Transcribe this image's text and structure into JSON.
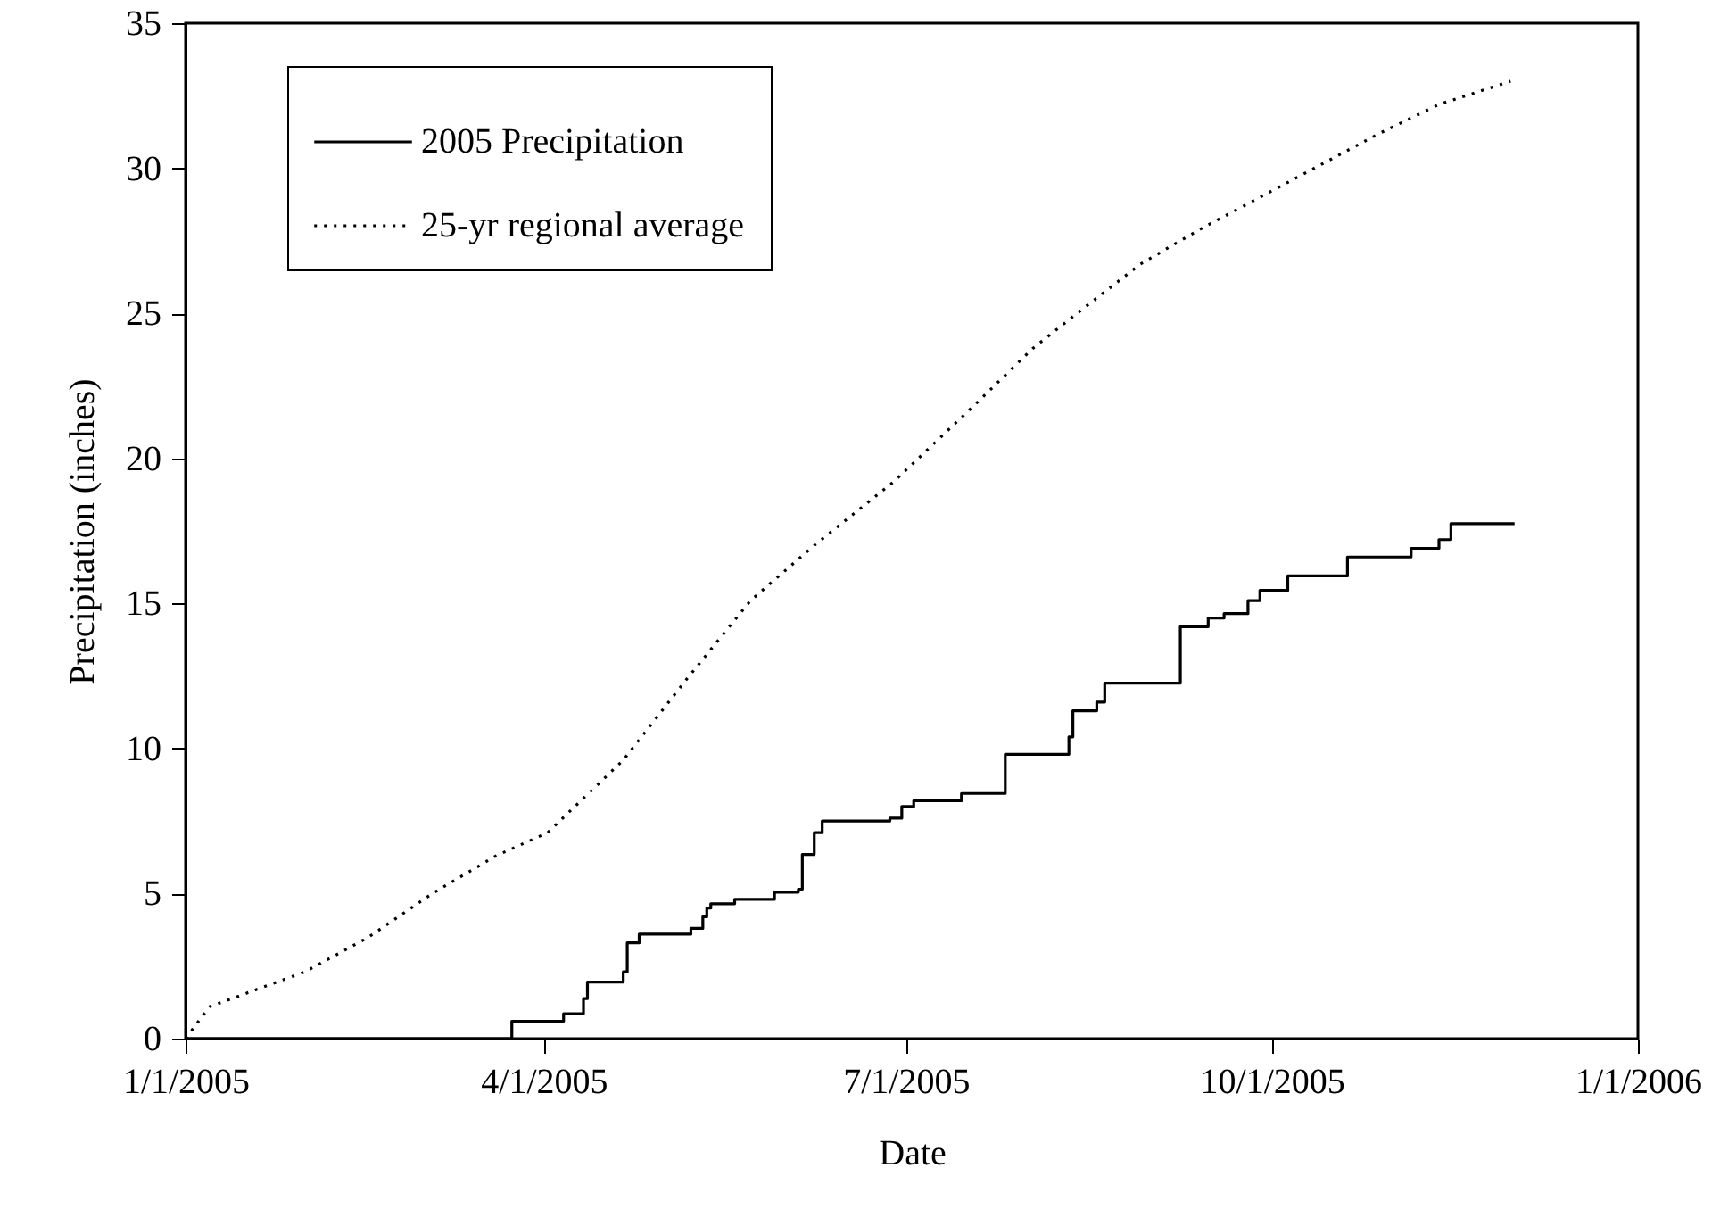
{
  "chart_data": {
    "type": "line",
    "xlabel": "Date",
    "ylabel": "Precipitation (inches)",
    "xlim": [
      "2005-01-01",
      "2006-01-01"
    ],
    "xticks": [
      {
        "value": "2005-01-01",
        "label": "1/1/2005"
      },
      {
        "value": "2005-04-01",
        "label": "4/1/2005"
      },
      {
        "value": "2005-07-01",
        "label": "7/1/2005"
      },
      {
        "value": "2005-10-01",
        "label": "10/1/2005"
      },
      {
        "value": "2006-01-01",
        "label": "1/1/2006"
      }
    ],
    "ylim": [
      0,
      35
    ],
    "yticks": [
      0,
      5,
      10,
      15,
      20,
      25,
      30,
      35
    ],
    "grid": false,
    "legend": "top left",
    "marker": "none",
    "series": [
      {
        "name": "2005 Precipitation",
        "type": "step",
        "line_style": "solid",
        "color": "#000000",
        "x": [
          "2005-01-01",
          "2005-03-24",
          "2005-04-06",
          "2005-04-11",
          "2005-04-12",
          "2005-04-21",
          "2005-04-22",
          "2005-04-25",
          "2005-05-08",
          "2005-05-11",
          "2005-05-12",
          "2005-05-13",
          "2005-05-19",
          "2005-05-29",
          "2005-06-04",
          "2005-06-05",
          "2005-06-08",
          "2005-06-10",
          "2005-06-27",
          "2005-06-30",
          "2005-07-03",
          "2005-07-15",
          "2005-07-26",
          "2005-08-11",
          "2005-08-12",
          "2005-08-18",
          "2005-08-20",
          "2005-09-08",
          "2005-09-15",
          "2005-09-19",
          "2005-09-25",
          "2005-09-28",
          "2005-10-05",
          "2005-10-20",
          "2005-11-05",
          "2005-11-12",
          "2005-11-15",
          "2005-12-01"
        ],
        "values": [
          0,
          0.6,
          0.86,
          1.38,
          1.95,
          2.3,
          3.3,
          3.6,
          3.8,
          4.2,
          4.5,
          4.65,
          4.8,
          5.05,
          5.15,
          6.35,
          7.1,
          7.5,
          7.6,
          8.0,
          8.2,
          8.45,
          9.8,
          10.4,
          11.3,
          11.6,
          12.25,
          14.2,
          14.5,
          14.65,
          15.1,
          15.45,
          15.95,
          16.6,
          16.9,
          17.2,
          17.75,
          17.75
        ]
      },
      {
        "name": "25-yr regional average",
        "type": "line",
        "line_style": "dotted",
        "color": "#000000",
        "x": [
          "2005-01-01",
          "2005-01-07",
          "2005-01-15",
          "2005-01-31",
          "2005-02-16",
          "2005-03-04",
          "2005-03-20",
          "2005-04-02",
          "2005-04-21",
          "2005-05-07",
          "2005-05-23",
          "2005-06-08",
          "2005-06-28",
          "2005-07-18",
          "2005-08-02",
          "2005-08-14",
          "2005-08-29",
          "2005-09-13",
          "2005-09-28",
          "2005-10-13",
          "2005-10-28",
          "2005-11-12",
          "2005-11-30"
        ],
        "values": [
          0,
          1.1,
          1.5,
          2.3,
          3.5,
          5.0,
          6.3,
          7.1,
          9.6,
          12.4,
          15.1,
          17.0,
          19.2,
          21.8,
          23.8,
          25.1,
          26.7,
          27.9,
          29.0,
          30.1,
          31.2,
          32.2,
          33.0
        ]
      }
    ]
  }
}
